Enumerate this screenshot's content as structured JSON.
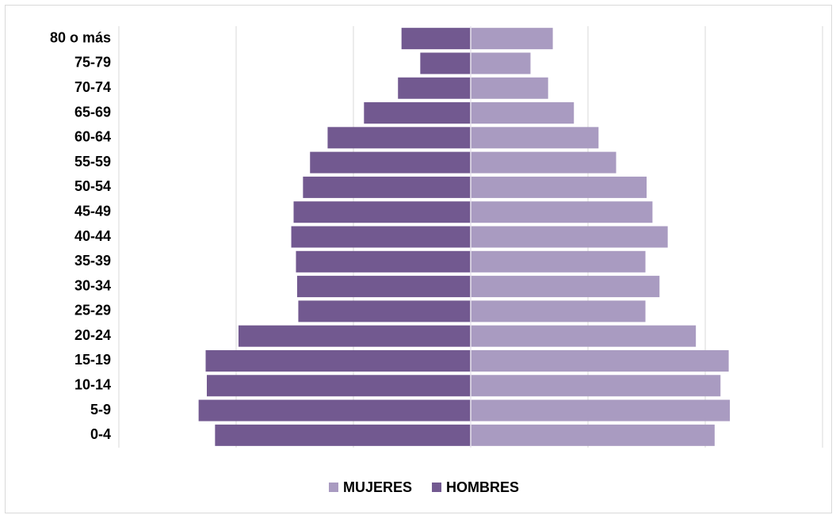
{
  "chart_data": {
    "type": "pyramid",
    "categories": [
      "80 o más",
      "75-79",
      "70-74",
      "65-69",
      "60-64",
      "55-59",
      "50-54",
      "45-49",
      "40-44",
      "35-39",
      "30-34",
      "25-29",
      "20-24",
      "15-19",
      "10-14",
      "5-9",
      "0-4"
    ],
    "series": [
      {
        "name": "MUJERES",
        "color": "#a99bc1",
        "side": "right",
        "values": [
          0.7,
          0.51,
          0.66,
          0.88,
          1.09,
          1.24,
          1.5,
          1.55,
          1.68,
          1.49,
          1.61,
          1.49,
          1.92,
          2.2,
          2.13,
          2.21,
          2.08
        ]
      },
      {
        "name": "HOMBRES",
        "color": "#725990",
        "side": "left",
        "values": [
          0.59,
          0.43,
          0.62,
          0.91,
          1.22,
          1.37,
          1.43,
          1.51,
          1.53,
          1.49,
          1.48,
          1.47,
          1.98,
          2.26,
          2.25,
          2.32,
          2.18
        ]
      }
    ],
    "xlim": [
      -3,
      3
    ],
    "gridlines": [
      -3,
      -2,
      -1,
      0,
      1,
      2,
      3
    ],
    "grid": true,
    "legend": "bottom"
  }
}
